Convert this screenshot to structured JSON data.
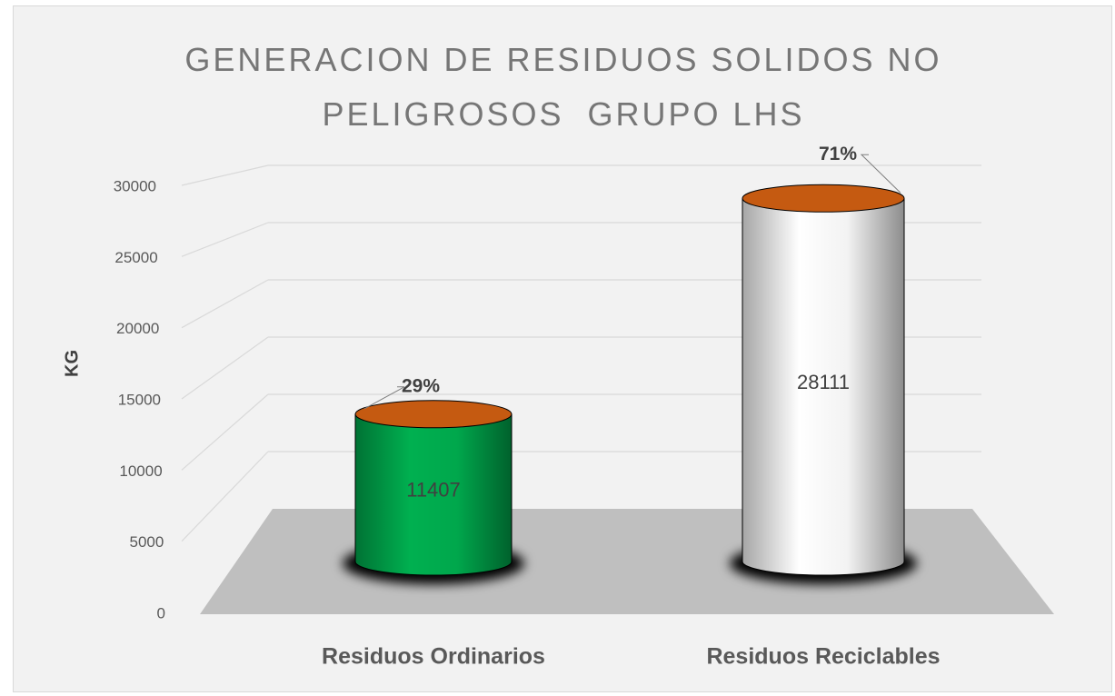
{
  "chart_data": {
    "type": "bar3d",
    "title": "GENERACION DE RESIDUOS SOLIDOS NO PELIGROSOS  GRUPO LHS",
    "ylabel": "KG",
    "categories": [
      "Residuos Ordinarios",
      "Residuos Reciclables"
    ],
    "values": [
      11407,
      28111
    ],
    "colors": [
      "#00b050",
      "#ffffff"
    ],
    "top_color": "#c55a11",
    "annotations": [
      "29%",
      "71%"
    ],
    "ylim": [
      0,
      30000
    ],
    "yticks": [
      0,
      5000,
      10000,
      15000,
      20000,
      25000,
      30000
    ],
    "grid": true
  }
}
